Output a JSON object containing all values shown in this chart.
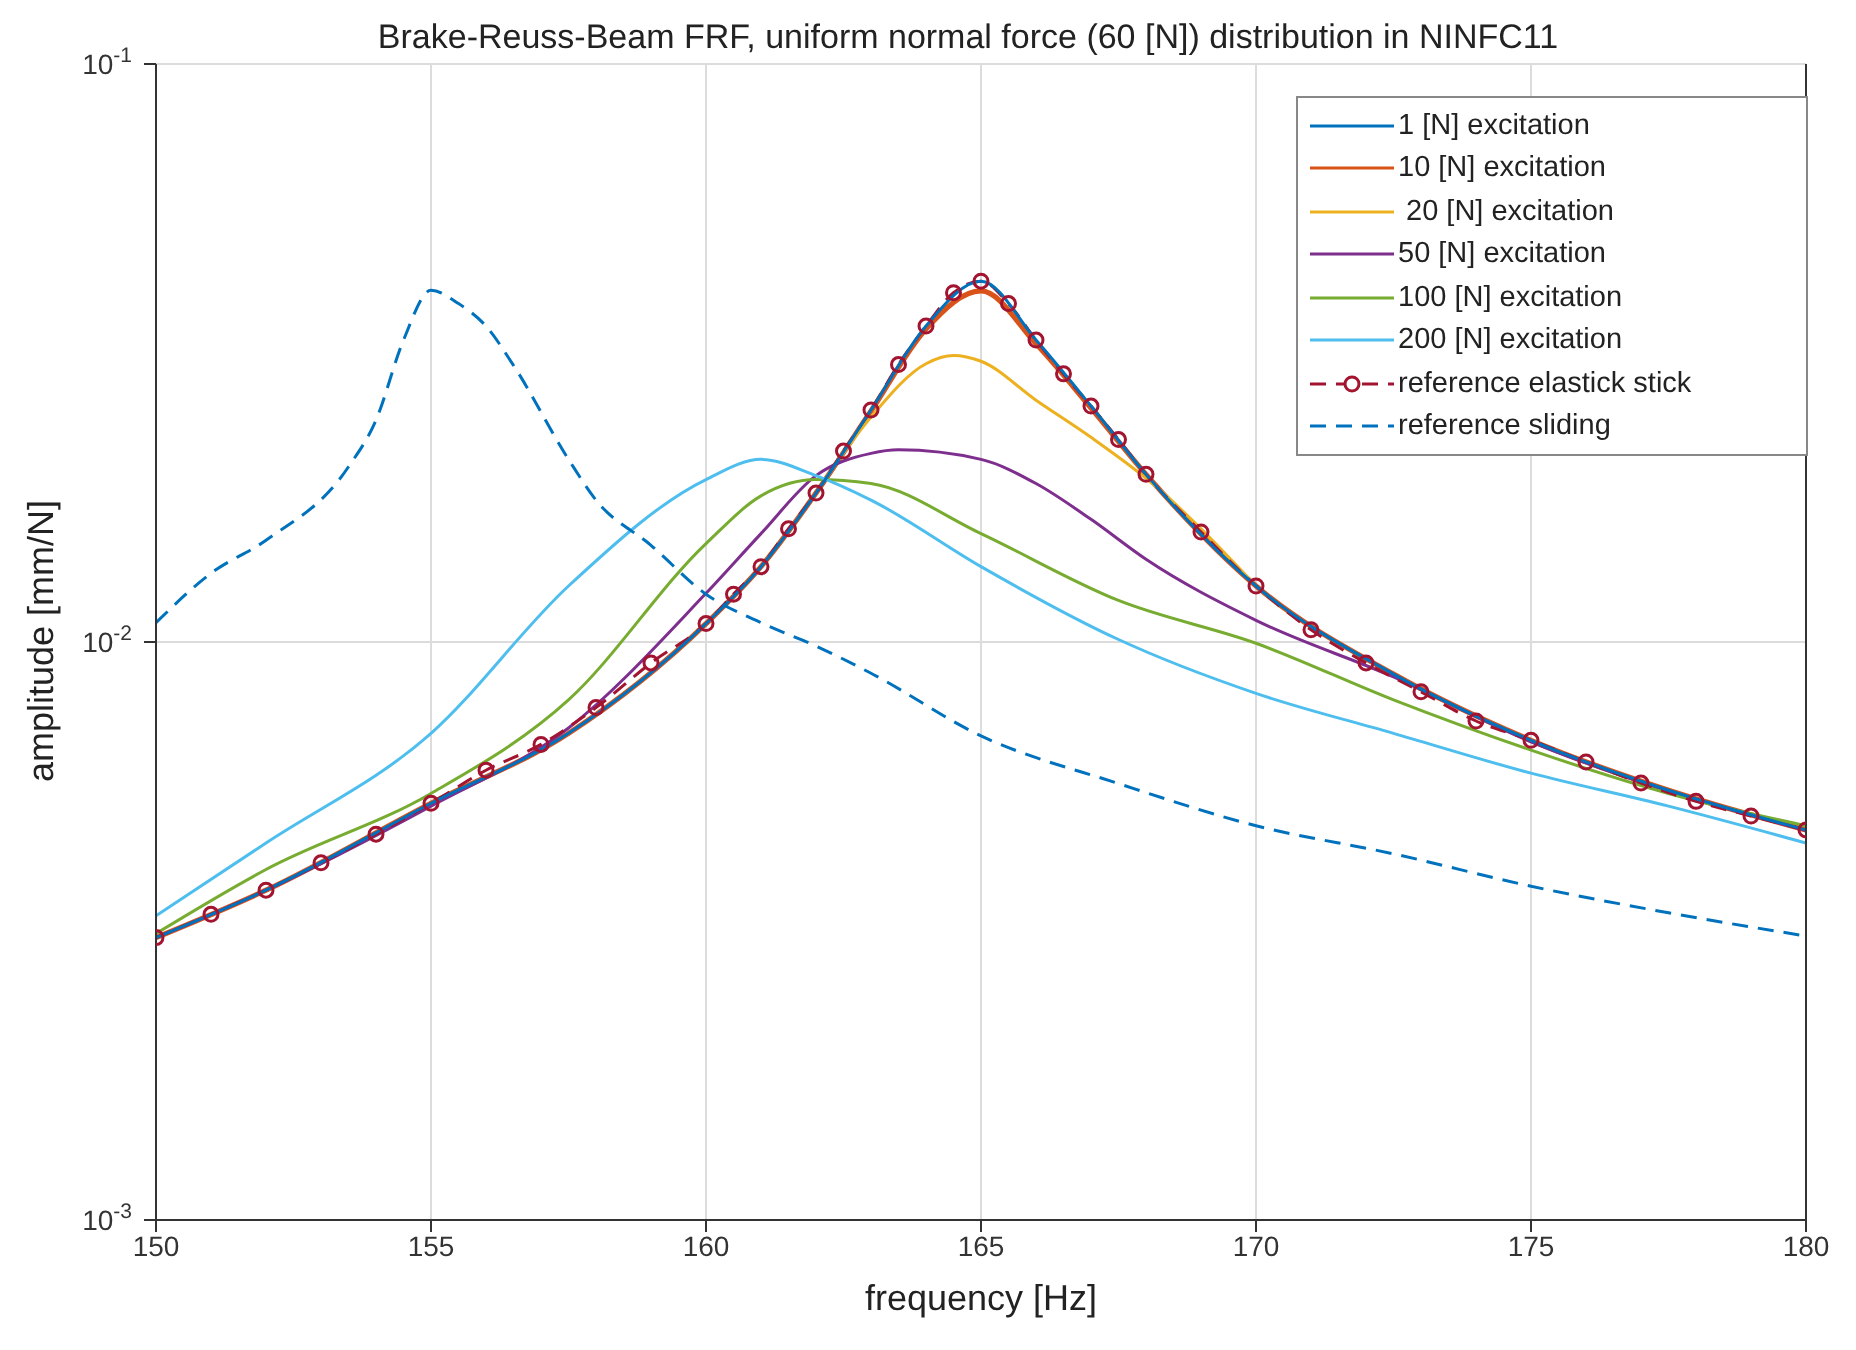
{
  "chart_data": {
    "type": "line",
    "title": "Brake-Reuss-Beam FRF, uniform normal force (60 [N]) distribution in NINFC11",
    "xlabel": "frequency [Hz]",
    "ylabel": "amplitude [mm/N]",
    "log": "y",
    "grid": true,
    "legend": "top right",
    "xlim": [
      150,
      180
    ],
    "xticks": [
      150,
      155,
      160,
      165,
      170,
      175,
      180
    ],
    "ylim": [
      0.001,
      0.1
    ],
    "yticks": [
      {
        "value": 0.001,
        "label": "10$^{-3}$"
      },
      {
        "value": 0.01,
        "label": "10$^{-2}$"
      },
      {
        "value": 0.1,
        "label": "10$^{-1}$"
      }
    ],
    "series": [
      {
        "name": "1 [N] excitation",
        "color": "#0072bd",
        "line_style": "solid",
        "marker": "none",
        "x": [
          150,
          152,
          155,
          157.5,
          160,
          161,
          162,
          163,
          164,
          165,
          166,
          167,
          168,
          170,
          172.5,
          175,
          177.5,
          180
        ],
        "values": [
          0.00308,
          0.00372,
          0.00526,
          0.00695,
          0.01076,
          0.0135,
          0.0181,
          0.0252,
          0.0352,
          0.0421,
          0.0333,
          0.0256,
          0.0195,
          0.0125,
          0.0088,
          0.00676,
          0.00554,
          0.00473
        ]
      },
      {
        "name": "10 [N] excitation",
        "color": "#d95319",
        "line_style": "solid",
        "marker": "none",
        "x": [
          150,
          152,
          155,
          157.5,
          160,
          161,
          162,
          163,
          164,
          165,
          166,
          167,
          168,
          170,
          172.5,
          175,
          177.5,
          180
        ],
        "values": [
          0.00308,
          0.00372,
          0.00526,
          0.00695,
          0.01076,
          0.0135,
          0.0181,
          0.0251,
          0.0348,
          0.0405,
          0.0328,
          0.0254,
          0.0195,
          0.0125,
          0.0088,
          0.00676,
          0.00554,
          0.00473
        ]
      },
      {
        "name": " 20 [N] excitation",
        "color": "#edb120",
        "line_style": "solid",
        "marker": "none",
        "x": [
          162,
          163,
          164,
          164.5,
          165,
          166,
          167,
          168,
          170
        ],
        "values": [
          0.0181,
          0.0245,
          0.0303,
          0.0313,
          0.0306,
          0.0262,
          0.0226,
          0.0192,
          0.0125
        ]
      },
      {
        "name": "50 [N] excitation",
        "color": "#7e2f8e",
        "line_style": "solid",
        "marker": "none",
        "x": [
          150,
          152,
          155,
          157.5,
          160,
          161,
          162,
          163,
          163.5,
          165,
          166,
          167,
          168,
          170,
          172.5,
          175,
          177.5,
          180
        ],
        "values": [
          0.00308,
          0.00372,
          0.0052,
          0.0071,
          0.01214,
          0.0154,
          0.0194,
          0.0212,
          0.0215,
          0.0207,
          0.0188,
          0.0163,
          0.0139,
          0.0109,
          0.0087,
          0.00672,
          0.00552,
          0.00472
        ]
      },
      {
        "name": "100 [N] excitation",
        "color": "#77ac30",
        "line_style": "solid",
        "marker": "none",
        "x": [
          150,
          152,
          155,
          157.5,
          160,
          161,
          162,
          163,
          165,
          167.5,
          170,
          172.5,
          175,
          177.5,
          180
        ],
        "values": [
          0.00313,
          0.00404,
          0.00547,
          0.00794,
          0.0148,
          0.0179,
          0.0191,
          0.0188,
          0.0154,
          0.0118,
          0.00995,
          0.00794,
          0.0065,
          0.00547,
          0.00481
        ]
      },
      {
        "name": "200 [N] excitation",
        "color": "#4dbeee",
        "line_style": "solid",
        "marker": "none",
        "x": [
          150,
          152,
          155,
          157.5,
          160,
          161,
          162,
          163,
          165,
          167.5,
          170,
          172.5,
          175,
          177.5,
          180
        ],
        "values": [
          0.00336,
          0.00449,
          0.00695,
          0.0125,
          0.0191,
          0.0207,
          0.0194,
          0.0176,
          0.0135,
          0.0101,
          0.00815,
          0.00695,
          0.00593,
          0.0052,
          0.00449
        ]
      },
      {
        "name": "reference elastick stick",
        "color": "#a2142f",
        "line_style": "dashed",
        "marker": "circle",
        "x": [
          150,
          151,
          152,
          153,
          154,
          155,
          156,
          157,
          158,
          159,
          160,
          160.5,
          161,
          161.5,
          162,
          162.5,
          163,
          163.5,
          164,
          164.5,
          165,
          165.5,
          166,
          166.5,
          167,
          167.5,
          168,
          169,
          170,
          171,
          172,
          173,
          174,
          175,
          176,
          177,
          178,
          179,
          180
        ],
        "values": [
          0.00308,
          0.00338,
          0.00372,
          0.00415,
          0.00465,
          0.00526,
          0.006,
          0.00665,
          0.0077,
          0.0092,
          0.01076,
          0.0121,
          0.0135,
          0.0157,
          0.0181,
          0.0214,
          0.0252,
          0.0302,
          0.0352,
          0.0402,
          0.0421,
          0.0385,
          0.0333,
          0.0291,
          0.0256,
          0.0224,
          0.0195,
          0.0155,
          0.0125,
          0.0105,
          0.0092,
          0.0082,
          0.0073,
          0.00676,
          0.0062,
          0.0057,
          0.0053,
          0.005,
          0.00473
        ]
      },
      {
        "name": "reference sliding",
        "color": "#0072bd",
        "line_style": "dashed",
        "marker": "none",
        "x": [
          150,
          151,
          152,
          153.5,
          154,
          154.5,
          155,
          155.5,
          156,
          156.5,
          157.5,
          158,
          159,
          160,
          161,
          162,
          163,
          165,
          167.5,
          170,
          172.5,
          175,
          177.5,
          180
        ],
        "values": [
          0.0108,
          0.01315,
          0.015,
          0.0201,
          0.0242,
          0.0333,
          0.0406,
          0.0385,
          0.0352,
          0.0301,
          0.0207,
          0.0176,
          0.0147,
          0.0121,
          0.0108,
          0.00984,
          0.00883,
          0.00688,
          0.00569,
          0.00481,
          0.0043,
          0.00378,
          0.0034,
          0.0031
        ]
      }
    ]
  }
}
